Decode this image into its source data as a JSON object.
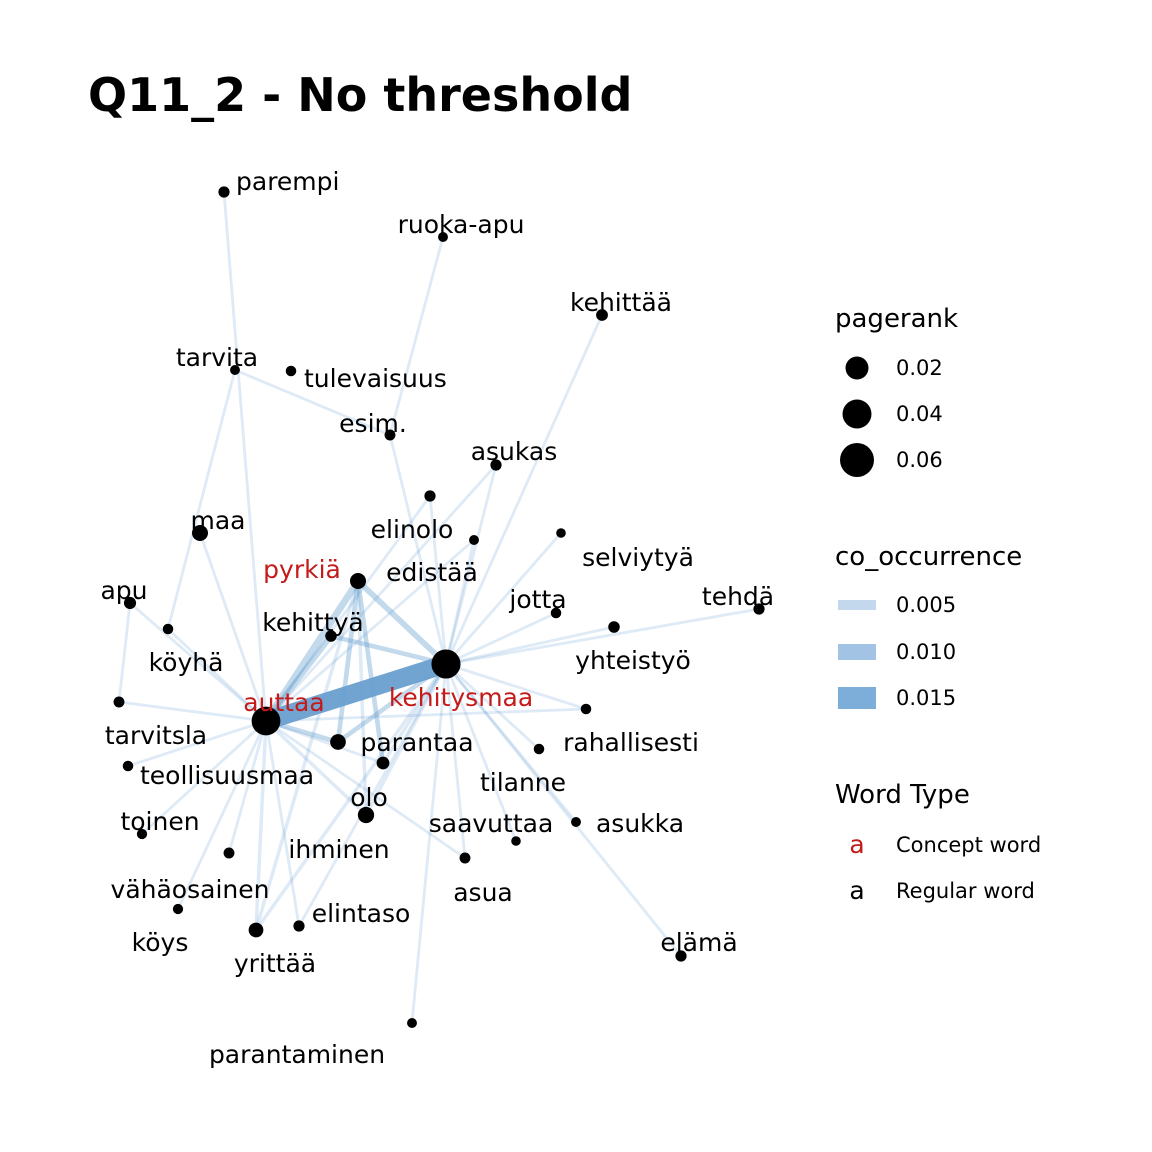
{
  "title": "Q11_2 - No threshold",
  "colors": {
    "concept": "#c41a1a",
    "regular": "#000000",
    "edge": "#6a9fd0",
    "node": "#000000"
  },
  "nodes": [
    {
      "id": "parempi",
      "label": "parempi",
      "type": "regular",
      "pagerank": 0.01
    },
    {
      "id": "ruoka-apu",
      "label": "ruoka-apu",
      "type": "regular",
      "pagerank": 0.006
    },
    {
      "id": "kehittää",
      "label": "kehittää",
      "type": "regular",
      "pagerank": 0.012
    },
    {
      "id": "tarvita",
      "label": "tarvita",
      "type": "regular",
      "pagerank": 0.006
    },
    {
      "id": "tulevaisuus",
      "label": "tulevaisuus",
      "type": "regular",
      "pagerank": 0.008
    },
    {
      "id": "esim.",
      "label": "esim.",
      "type": "regular",
      "pagerank": 0.009
    },
    {
      "id": "asukas",
      "label": "asukas",
      "type": "regular",
      "pagerank": 0.01
    },
    {
      "id": "elinolo",
      "label": "elinolo",
      "type": "regular",
      "pagerank": 0.01
    },
    {
      "id": "edistää",
      "label": "edistää",
      "type": "regular",
      "pagerank": 0.006
    },
    {
      "id": "maa",
      "label": "maa",
      "type": "regular",
      "pagerank": 0.025
    },
    {
      "id": "pyrkiä",
      "label": "pyrkiä",
      "type": "concept",
      "pagerank": 0.025
    },
    {
      "id": "selviytyä",
      "label": "selviytyä",
      "type": "regular",
      "pagerank": 0.005
    },
    {
      "id": "apu",
      "label": "apu",
      "type": "regular",
      "pagerank": 0.013
    },
    {
      "id": "jotta",
      "label": "jotta",
      "type": "regular",
      "pagerank": 0.008
    },
    {
      "id": "tehdä",
      "label": "tehdä",
      "type": "regular",
      "pagerank": 0.01
    },
    {
      "id": "köyhä",
      "label": "köyhä",
      "type": "regular",
      "pagerank": 0.008
    },
    {
      "id": "kehittyä",
      "label": "kehittyä",
      "type": "regular",
      "pagerank": 0.011
    },
    {
      "id": "yhteistyö",
      "label": "yhteistyö",
      "type": "regular",
      "pagerank": 0.011
    },
    {
      "id": "kehitysmaa",
      "label": "kehitysmaa",
      "type": "concept",
      "pagerank": 0.066
    },
    {
      "id": "auttaa",
      "label": "auttaa",
      "type": "concept",
      "pagerank": 0.065
    },
    {
      "id": "tarvitsla",
      "label": "tarvitsla",
      "type": "regular",
      "pagerank": 0.009
    },
    {
      "id": "rahallisesti",
      "label": "rahallisesti",
      "type": "regular",
      "pagerank": 0.008
    },
    {
      "id": "parantaa",
      "label": "parantaa",
      "type": "regular",
      "pagerank": 0.024
    },
    {
      "id": "teollisuusmaa",
      "label": "teollisuusmaa",
      "type": "regular",
      "pagerank": 0.008
    },
    {
      "id": "tilanne",
      "label": "tilanne",
      "type": "regular",
      "pagerank": 0.008
    },
    {
      "id": "olo",
      "label": "olo",
      "type": "regular",
      "pagerank": 0.015
    },
    {
      "id": "toinen",
      "label": "toinen",
      "type": "regular",
      "pagerank": 0.007
    },
    {
      "id": "saavuttaa",
      "label": "saavuttaa",
      "type": "regular",
      "pagerank": 0.005
    },
    {
      "id": "asukka",
      "label": "asukka",
      "type": "regular",
      "pagerank": 0.006
    },
    {
      "id": "ihminen",
      "label": "ihminen",
      "type": "regular",
      "pagerank": 0.026
    },
    {
      "id": "vähäosainen",
      "label": "vähäosainen",
      "type": "regular",
      "pagerank": 0.009
    },
    {
      "id": "asua",
      "label": "asua",
      "type": "regular",
      "pagerank": 0.009
    },
    {
      "id": "elintaso",
      "label": "elintaso",
      "type": "regular",
      "pagerank": 0.01
    },
    {
      "id": "köys",
      "label": "köys",
      "type": "regular",
      "pagerank": 0.007
    },
    {
      "id": "yrittää",
      "label": "yrittää",
      "type": "regular",
      "pagerank": 0.021
    },
    {
      "id": "elämä",
      "label": "elämä",
      "type": "regular",
      "pagerank": 0.01
    },
    {
      "id": "parantaminen",
      "label": "parantaminen",
      "type": "regular",
      "pagerank": 0.006
    }
  ],
  "edges": [
    {
      "source": "auttaa",
      "target": "kehitysmaa",
      "co_occurrence": 0.016
    },
    {
      "source": "auttaa",
      "target": "pyrkiä",
      "co_occurrence": 0.006
    },
    {
      "source": "pyrkiä",
      "target": "kehitysmaa",
      "co_occurrence": 0.005
    },
    {
      "source": "auttaa",
      "target": "kehittyä",
      "co_occurrence": 0.005
    },
    {
      "source": "kehittyä",
      "target": "kehitysmaa",
      "co_occurrence": 0.004
    },
    {
      "source": "pyrkiä",
      "target": "parantaa",
      "co_occurrence": 0.004
    },
    {
      "source": "pyrkiä",
      "target": "olo",
      "co_occurrence": 0.004
    },
    {
      "source": "auttaa",
      "target": "parantaa",
      "co_occurrence": 0.004
    },
    {
      "source": "parantaa",
      "target": "kehitysmaa",
      "co_occurrence": 0.004
    },
    {
      "source": "olo",
      "target": "kehitysmaa",
      "co_occurrence": 0.003
    },
    {
      "source": "ihminen",
      "target": "kehitysmaa",
      "co_occurrence": 0.003
    },
    {
      "source": "ihminen",
      "target": "auttaa",
      "co_occurrence": 0.003
    },
    {
      "source": "ihminen",
      "target": "pyrkiä",
      "co_occurrence": 0.003
    },
    {
      "source": "yrittää",
      "target": "auttaa",
      "co_occurrence": 0.003
    },
    {
      "source": "yrittää",
      "target": "kehitysmaa",
      "co_occurrence": 0.003
    },
    {
      "source": "yrittää",
      "target": "pyrkiä",
      "co_occurrence": 0.003
    },
    {
      "source": "parempi",
      "target": "auttaa",
      "co_occurrence": 0.002
    },
    {
      "source": "ruoka-apu",
      "target": "esim.",
      "co_occurrence": 0.002
    },
    {
      "source": "esim.",
      "target": "tarvita",
      "co_occurrence": 0.002
    },
    {
      "source": "esim.",
      "target": "kehitysmaa",
      "co_occurrence": 0.002
    },
    {
      "source": "tarvita",
      "target": "köyhä",
      "co_occurrence": 0.002
    },
    {
      "source": "kehittää",
      "target": "kehitysmaa",
      "co_occurrence": 0.002
    },
    {
      "source": "asukas",
      "target": "kehitysmaa",
      "co_occurrence": 0.002
    },
    {
      "source": "asukas",
      "target": "auttaa",
      "co_occurrence": 0.002
    },
    {
      "source": "elinolo",
      "target": "kehitysmaa",
      "co_occurrence": 0.002
    },
    {
      "source": "elinolo",
      "target": "auttaa",
      "co_occurrence": 0.002
    },
    {
      "source": "edistää",
      "target": "kehitysmaa",
      "co_occurrence": 0.002
    },
    {
      "source": "edistää",
      "target": "auttaa",
      "co_occurrence": 0.002
    },
    {
      "source": "maa",
      "target": "auttaa",
      "co_occurrence": 0.002
    },
    {
      "source": "selviytyä",
      "target": "kehitysmaa",
      "co_occurrence": 0.002
    },
    {
      "source": "apu",
      "target": "auttaa",
      "co_occurrence": 0.002
    },
    {
      "source": "apu",
      "target": "tarvitsla",
      "co_occurrence": 0.002
    },
    {
      "source": "jotta",
      "target": "kehitysmaa",
      "co_occurrence": 0.002
    },
    {
      "source": "tehdä",
      "target": "kehitysmaa",
      "co_occurrence": 0.002
    },
    {
      "source": "yhteistyö",
      "target": "kehitysmaa",
      "co_occurrence": 0.002
    },
    {
      "source": "köyhä",
      "target": "auttaa",
      "co_occurrence": 0.002
    },
    {
      "source": "tarvitsla",
      "target": "auttaa",
      "co_occurrence": 0.002
    },
    {
      "source": "rahallisesti",
      "target": "kehitysmaa",
      "co_occurrence": 0.002
    },
    {
      "source": "rahallisesti",
      "target": "auttaa",
      "co_occurrence": 0.002
    },
    {
      "source": "teollisuusmaa",
      "target": "auttaa",
      "co_occurrence": 0.002
    },
    {
      "source": "tilanne",
      "target": "kehitysmaa",
      "co_occurrence": 0.002
    },
    {
      "source": "olo",
      "target": "auttaa",
      "co_occurrence": 0.002
    },
    {
      "source": "toinen",
      "target": "auttaa",
      "co_occurrence": 0.002
    },
    {
      "source": "saavuttaa",
      "target": "kehitysmaa",
      "co_occurrence": 0.002
    },
    {
      "source": "asukka",
      "target": "kehitysmaa",
      "co_occurrence": 0.002
    },
    {
      "source": "vähäosainen",
      "target": "auttaa",
      "co_occurrence": 0.002
    },
    {
      "source": "asua",
      "target": "auttaa",
      "co_occurrence": 0.002
    },
    {
      "source": "asua",
      "target": "kehitysmaa",
      "co_occurrence": 0.002
    },
    {
      "source": "elintaso",
      "target": "auttaa",
      "co_occurrence": 0.002
    },
    {
      "source": "elintaso",
      "target": "kehitysmaa",
      "co_occurrence": 0.002
    },
    {
      "source": "köys",
      "target": "auttaa",
      "co_occurrence": 0.002
    },
    {
      "source": "elämä",
      "target": "kehitysmaa",
      "co_occurrence": 0.002
    },
    {
      "source": "parantaminen",
      "target": "kehitysmaa",
      "co_occurrence": 0.002
    }
  ],
  "legend": {
    "pagerank": {
      "title": "pagerank",
      "items": [
        {
          "label": "0.02",
          "value": 0.02
        },
        {
          "label": "0.04",
          "value": 0.04
        },
        {
          "label": "0.06",
          "value": 0.06
        }
      ]
    },
    "co_occurrence": {
      "title": "co_occurrence",
      "items": [
        {
          "label": "0.005",
          "value": 0.005
        },
        {
          "label": "0.010",
          "value": 0.01
        },
        {
          "label": "0.015",
          "value": 0.015
        }
      ]
    },
    "word_type": {
      "title": "Word Type",
      "items": [
        {
          "glyph": "a",
          "label": "Concept word",
          "type": "concept"
        },
        {
          "glyph": "a",
          "label": "Regular word",
          "type": "regular"
        }
      ]
    }
  }
}
